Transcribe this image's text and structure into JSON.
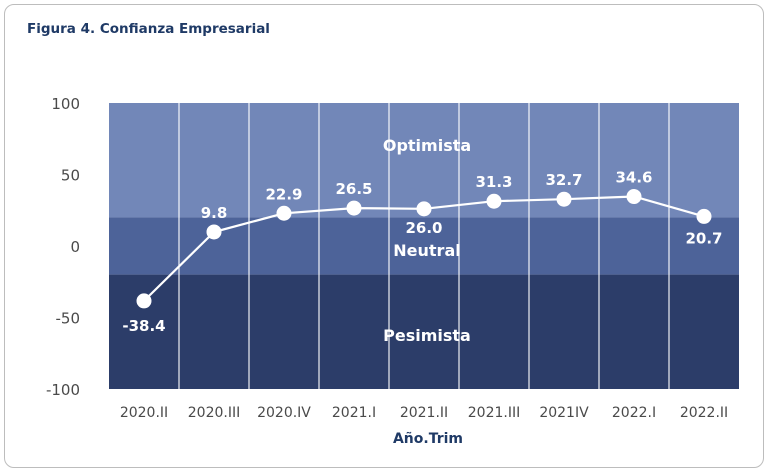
{
  "figure": {
    "title": "Figura 4. Confianza Empresarial"
  },
  "chart_data": {
    "type": "line",
    "title": "Figura 4. Confianza Empresarial",
    "xlabel": "Año.Trim",
    "ylabel": "",
    "categories": [
      "2020.II",
      "2020.III",
      "2020.IV",
      "2021.I",
      "2021.II",
      "2021.III",
      "2021IV",
      "2022.I",
      "2022.II"
    ],
    "values": [
      -38.4,
      9.8,
      22.9,
      26.5,
      26.0,
      31.3,
      32.7,
      34.6,
      20.7
    ],
    "value_labels": [
      "-38.4",
      "9.8",
      "22.9",
      "26.5",
      "26.0",
      "31.3",
      "32.7",
      "34.6",
      "20.7"
    ],
    "ylim": [
      -100,
      100
    ],
    "yticks": [
      100,
      50,
      0,
      -50,
      -100
    ],
    "ytick_labels": [
      "100",
      "50",
      "0",
      "-50",
      "-100"
    ],
    "zones": [
      {
        "name": "Optimista",
        "from": 20,
        "to": 100,
        "color": "#7287b8"
      },
      {
        "name": "Neutral",
        "from": -20,
        "to": 20,
        "color": "#4d6399"
      },
      {
        "name": "Pesimista",
        "from": -100,
        "to": -20,
        "color": "#2c3d69"
      }
    ],
    "line_color": "#ffffff",
    "grid": true
  }
}
